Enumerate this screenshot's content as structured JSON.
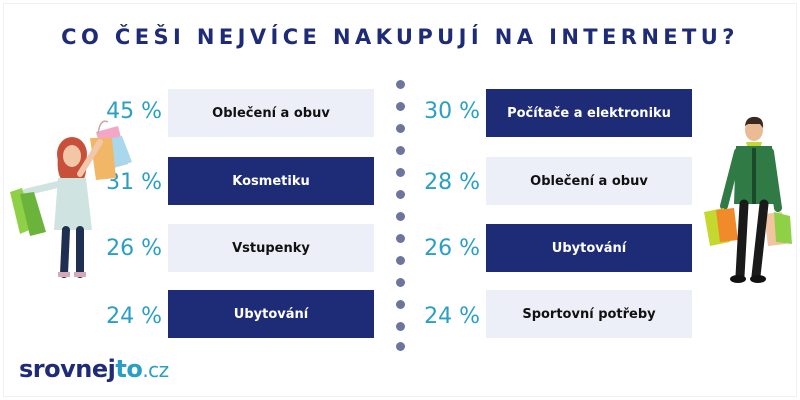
{
  "title": "CO ČEŠI NEJVÍCE NAKUPUJÍ NA INTERNETU?",
  "women": [
    {
      "percent": "45 %",
      "label": "Oblečení a obuv",
      "style": "light"
    },
    {
      "percent": "31 %",
      "label": "Kosmetiku",
      "style": "dark"
    },
    {
      "percent": "26 %",
      "label": "Vstupenky",
      "style": "light"
    },
    {
      "percent": "24 %",
      "label": "Ubytování",
      "style": "dark"
    }
  ],
  "men": [
    {
      "percent": "30 %",
      "label": "Počítače a elektroniku",
      "style": "dark"
    },
    {
      "percent": "28 %",
      "label": "Oblečení a obuv",
      "style": "light"
    },
    {
      "percent": "26 %",
      "label": "Ubytování",
      "style": "dark"
    },
    {
      "percent": "24 %",
      "label": "Sportovní potřeby",
      "style": "light"
    }
  ],
  "logo": {
    "part1": "srovnej",
    "part2": "to",
    "part3": ".cz"
  },
  "colors": {
    "navy": "#1e2c78",
    "teal": "#2a9fc6",
    "light": "#eceef8"
  },
  "icons": {
    "left_figure": "woman-shopper-icon",
    "right_figure": "man-shopper-icon"
  }
}
